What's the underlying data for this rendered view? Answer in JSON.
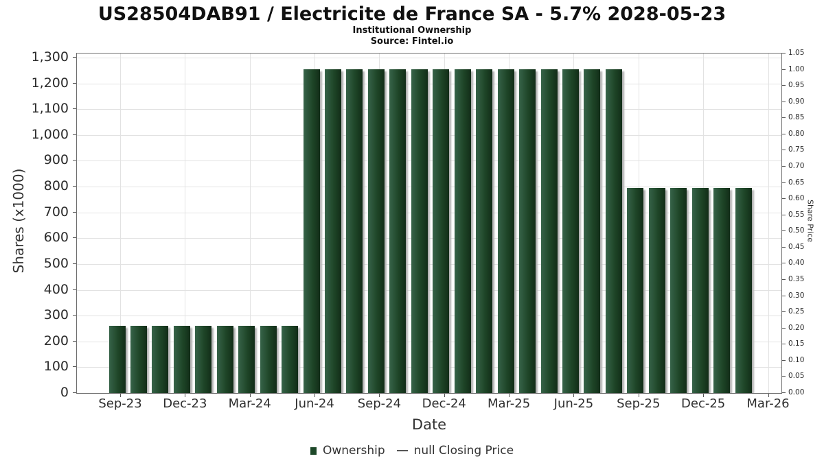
{
  "header": {
    "title": "US28504DAB91 / Electricite de France SA - 5.7% 2028-05-23",
    "subtitle": "Institutional Ownership",
    "source": "Source: Fintel.io"
  },
  "legend": {
    "ownership_label": "Ownership",
    "price_label": "null Closing Price"
  },
  "chart_data": {
    "type": "bar",
    "title": "US28504DAB91 / Electricite de France SA - 5.7% 2028-05-23",
    "subtitle": "Institutional Ownership",
    "source": "Source: Fintel.io",
    "xlabel": "Date",
    "ylabel": "Shares (x1000)",
    "ylabel_right": "Share Price",
    "grid": "on",
    "legend_position": "bottom",
    "categories": [
      "Sep-23",
      "Oct-23",
      "Nov-23",
      "Dec-23",
      "Jan-24",
      "Feb-24",
      "Mar-24",
      "Apr-24",
      "May-24",
      "Jun-24",
      "Jul-24",
      "Aug-24",
      "Sep-24",
      "Oct-24",
      "Nov-24",
      "Dec-24",
      "Jan-25",
      "Feb-25",
      "Mar-25",
      "Apr-25",
      "May-25",
      "Jun-25",
      "Jul-25",
      "Aug-25",
      "Sep-25",
      "Oct-25",
      "Nov-25",
      "Dec-25",
      "Jan-26",
      "Feb-26"
    ],
    "values": [
      260,
      260,
      260,
      260,
      260,
      260,
      260,
      260,
      260,
      1255,
      1255,
      1255,
      1255,
      1255,
      1255,
      1255,
      1255,
      1255,
      1255,
      1255,
      1255,
      1255,
      1255,
      1255,
      795,
      795,
      795,
      795,
      795,
      795
    ],
    "series_name": "Ownership",
    "price_series": {
      "name": "null Closing Price",
      "values": []
    },
    "ylim_left": [
      0,
      1300
    ],
    "yticks_left": [
      0,
      100,
      200,
      300,
      400,
      500,
      600,
      700,
      800,
      900,
      1000,
      1100,
      1200,
      1300
    ],
    "ylim_right": [
      0,
      1.05
    ],
    "yticks_right": [
      0,
      0.05,
      0.1,
      0.15,
      0.2,
      0.25,
      0.3,
      0.35,
      0.4,
      0.45,
      0.5,
      0.55,
      0.6,
      0.65,
      0.7,
      0.75,
      0.8,
      0.85,
      0.9,
      0.95,
      1.0,
      1.05
    ],
    "x_ticks": [
      {
        "index": 0,
        "label": "Sep-23"
      },
      {
        "index": 3,
        "label": "Dec-23"
      },
      {
        "index": 6,
        "label": "Mar-24"
      },
      {
        "index": 9,
        "label": "Jun-24"
      },
      {
        "index": 12,
        "label": "Sep-24"
      },
      {
        "index": 15,
        "label": "Dec-24"
      },
      {
        "index": 18,
        "label": "Mar-25"
      },
      {
        "index": 21,
        "label": "Jun-25"
      },
      {
        "index": 24,
        "label": "Sep-25"
      },
      {
        "index": 27,
        "label": "Dec-25"
      },
      {
        "index": 30,
        "label": "Mar-26"
      }
    ],
    "colors": {
      "bar_gradient_light": "#376349",
      "bar_gradient_mid": "#1e4527",
      "bar_gradient_dark": "#122d18",
      "bar_shadow": "#b3b3b3",
      "legend_marker": "#1d4829",
      "grid": "#e2e2e2",
      "plot_border": "#6f6f6f",
      "tick": "#555555"
    }
  }
}
